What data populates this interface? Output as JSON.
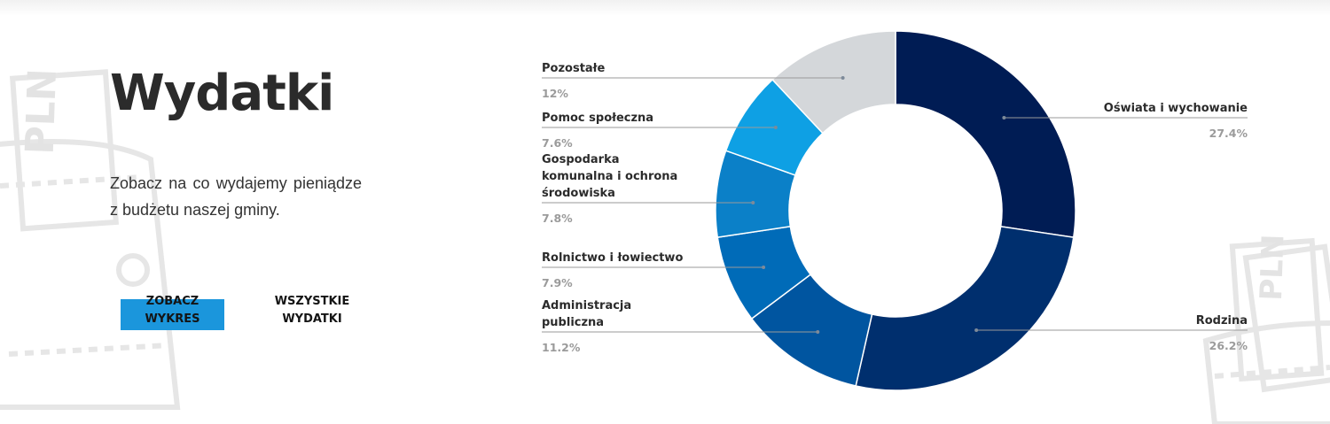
{
  "header": {
    "title": "Wydatki",
    "description": "Zobacz na co wydajemy pieniądze z budżetu naszej gminy."
  },
  "buttons": {
    "chart": "ZOBACZ WYKRES",
    "all": "WSZYSTKIE WYDATKI"
  },
  "decor": {
    "wallet_text": "PLN"
  },
  "chart_data": {
    "type": "pie",
    "donut": true,
    "categories": [
      "Oświata i wychowanie",
      "Rodzina",
      "Administracja publiczna",
      "Rolnictwo i łowiectwo",
      "Gospodarka komunalna i ochrona środowiska",
      "Pomoc społeczna",
      "Pozostałe"
    ],
    "values": [
      27.4,
      26.2,
      11.2,
      7.9,
      7.8,
      7.6,
      12
    ],
    "value_labels": [
      "27.4%",
      "26.2%",
      "11.2%",
      "7.9%",
      "7.8%",
      "7.6%",
      "12%"
    ],
    "colors": [
      "#001c54",
      "#002f6e",
      "#0055a0",
      "#006bb8",
      "#0b80c8",
      "#0ea0e4",
      "#d4d7da"
    ],
    "label_color": "#2b2b2b",
    "value_color": "#9b9b9b"
  }
}
